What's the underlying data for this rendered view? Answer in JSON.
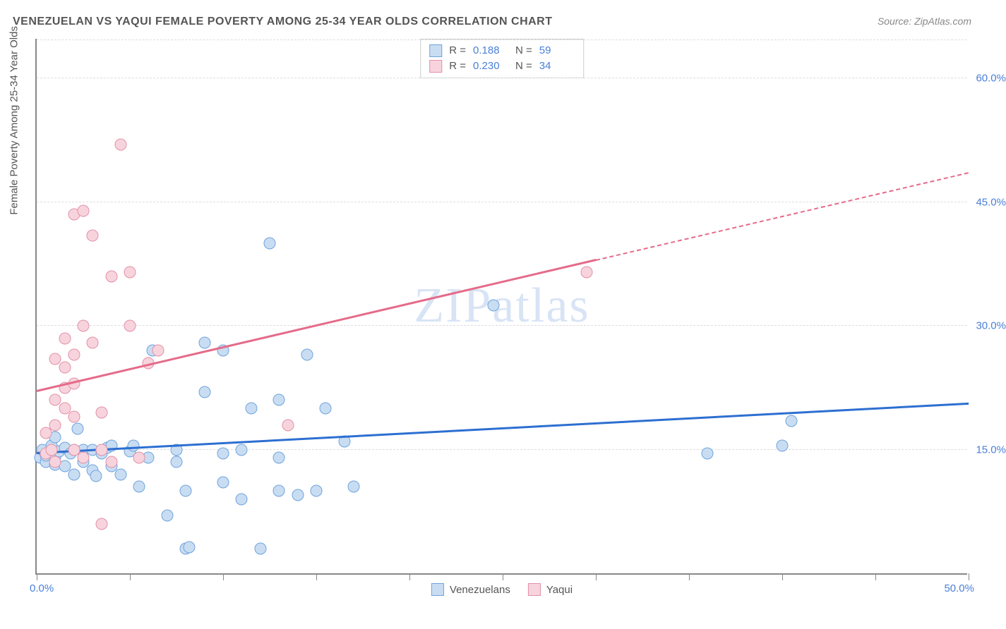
{
  "title": "VENEZUELAN VS YAQUI FEMALE POVERTY AMONG 25-34 YEAR OLDS CORRELATION CHART",
  "source_label": "Source:",
  "source_name": "ZipAtlas.com",
  "y_axis_title": "Female Poverty Among 25-34 Year Olds",
  "watermark": "ZIPatlas",
  "chart": {
    "type": "scatter",
    "xlim": [
      0,
      50
    ],
    "ylim": [
      0,
      65
    ],
    "x_ticks": [
      0,
      5,
      10,
      15,
      20,
      25,
      30,
      35,
      40,
      45,
      50
    ],
    "x_label_min": "0.0%",
    "x_label_max": "50.0%",
    "y_grid": [
      {
        "v": 15,
        "label": "15.0%"
      },
      {
        "v": 30,
        "label": "30.0%"
      },
      {
        "v": 45,
        "label": "45.0%"
      },
      {
        "v": 60,
        "label": "60.0%"
      }
    ],
    "background_color": "#ffffff",
    "grid_color": "#dddddd",
    "axis_color": "#888888",
    "tick_label_color": "#4a7fd8",
    "marker_radius": 8.5,
    "series": [
      {
        "name": "Venezuelans",
        "fill": "#c9ddf2",
        "stroke": "#6fa3dd",
        "r_label": "R =",
        "r_value": "0.188",
        "n_label": "N =",
        "n_value": "59",
        "regression": {
          "x1": 0,
          "y1": 14.5,
          "x2": 50,
          "y2": 20.5,
          "color": "#2d6fd1",
          "dash_from_x": 50
        },
        "points": [
          [
            0.2,
            14
          ],
          [
            0.3,
            15
          ],
          [
            0.5,
            13.5
          ],
          [
            0.5,
            14.3
          ],
          [
            0.8,
            15.5
          ],
          [
            1.0,
            13.2
          ],
          [
            1.0,
            14.0
          ],
          [
            1.0,
            16.5
          ],
          [
            1.2,
            14.8
          ],
          [
            1.5,
            13.0
          ],
          [
            1.5,
            15.2
          ],
          [
            1.8,
            14.5
          ],
          [
            2.0,
            12.0
          ],
          [
            2.0,
            15.0
          ],
          [
            2.2,
            17.5
          ],
          [
            2.5,
            13.5
          ],
          [
            2.5,
            15.0
          ],
          [
            3.0,
            12.5
          ],
          [
            3.0,
            15.0
          ],
          [
            3.2,
            11.8
          ],
          [
            3.5,
            14.5
          ],
          [
            3.8,
            15.2
          ],
          [
            4.0,
            13.0
          ],
          [
            4.0,
            15.5
          ],
          [
            4.5,
            12.0
          ],
          [
            5.0,
            14.8
          ],
          [
            5.2,
            15.5
          ],
          [
            5.5,
            10.5
          ],
          [
            6.0,
            14.0
          ],
          [
            6.2,
            27.0
          ],
          [
            7.0,
            7.0
          ],
          [
            7.5,
            13.5
          ],
          [
            7.5,
            15.0
          ],
          [
            8.0,
            3.0
          ],
          [
            8.0,
            10.0
          ],
          [
            8.2,
            3.2
          ],
          [
            9.0,
            22.0
          ],
          [
            9.0,
            28.0
          ],
          [
            10.0,
            11.0
          ],
          [
            10.0,
            14.5
          ],
          [
            10.0,
            27.0
          ],
          [
            11.0,
            9.0
          ],
          [
            11.0,
            15.0
          ],
          [
            11.5,
            20.0
          ],
          [
            12.0,
            3.0
          ],
          [
            12.5,
            40.0
          ],
          [
            13.0,
            10.0
          ],
          [
            13.0,
            14.0
          ],
          [
            13.0,
            21.0
          ],
          [
            14.0,
            9.5
          ],
          [
            14.5,
            26.5
          ],
          [
            15.0,
            10.0
          ],
          [
            15.5,
            20.0
          ],
          [
            16.5,
            16.0
          ],
          [
            17.0,
            10.5
          ],
          [
            24.5,
            32.5
          ],
          [
            36.0,
            14.5
          ],
          [
            40.0,
            15.5
          ],
          [
            40.5,
            18.5
          ]
        ]
      },
      {
        "name": "Yaqui",
        "fill": "#f7d4dd",
        "stroke": "#e290a8",
        "r_label": "R =",
        "r_value": "0.230",
        "n_label": "N =",
        "n_value": "34",
        "regression": {
          "x1": 0,
          "y1": 22.0,
          "x2": 30,
          "y2": 38.0,
          "color": "#e56b8a",
          "dash_from_x": 30,
          "dash_to_x": 50,
          "dash_to_y": 48.5
        },
        "points": [
          [
            0.5,
            14.5
          ],
          [
            0.5,
            17.0
          ],
          [
            0.8,
            15.0
          ],
          [
            1.0,
            13.5
          ],
          [
            1.0,
            18.0
          ],
          [
            1.0,
            21.0
          ],
          [
            1.0,
            26.0
          ],
          [
            1.5,
            20.0
          ],
          [
            1.5,
            22.5
          ],
          [
            1.5,
            25.0
          ],
          [
            1.5,
            28.5
          ],
          [
            2.0,
            15.0
          ],
          [
            2.0,
            19.0
          ],
          [
            2.0,
            23.0
          ],
          [
            2.0,
            26.5
          ],
          [
            2.0,
            43.5
          ],
          [
            2.5,
            14.0
          ],
          [
            2.5,
            30.0
          ],
          [
            2.5,
            44.0
          ],
          [
            3.0,
            28.0
          ],
          [
            3.0,
            41.0
          ],
          [
            3.5,
            15.0
          ],
          [
            3.5,
            19.5
          ],
          [
            3.5,
            6.0
          ],
          [
            4.0,
            13.5
          ],
          [
            4.0,
            36.0
          ],
          [
            4.5,
            52.0
          ],
          [
            5.0,
            36.5
          ],
          [
            5.0,
            30.0
          ],
          [
            5.5,
            14.0
          ],
          [
            6.0,
            25.5
          ],
          [
            6.5,
            27.0
          ],
          [
            13.5,
            18.0
          ],
          [
            29.5,
            36.5
          ]
        ]
      }
    ]
  }
}
